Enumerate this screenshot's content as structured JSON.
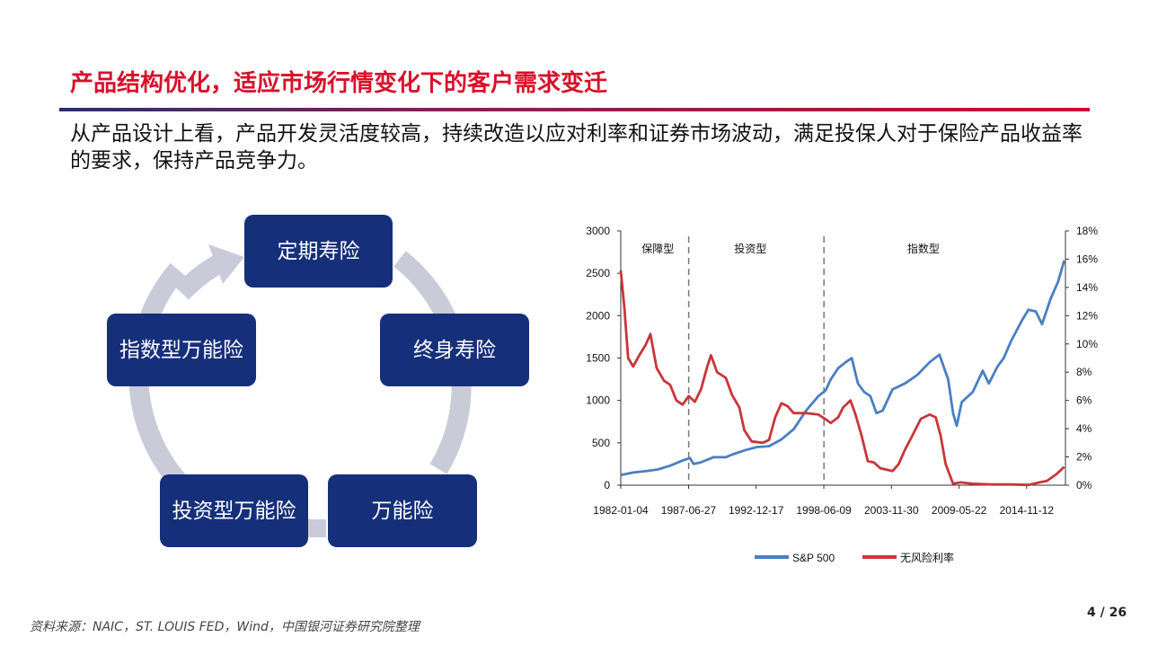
{
  "header": {
    "title": "产品结构优化，适应市场行情变化下的客户需求变迁"
  },
  "body": {
    "text": "从产品设计上看，产品开发灵活度较高，持续改造以应对利率和证券市场波动，满足投保人对于保险产品收益率的要求，保持产品竞争力。"
  },
  "cycle": {
    "items": [
      {
        "label": "定期寿险"
      },
      {
        "label": "终身寿险"
      },
      {
        "label": "万能险"
      },
      {
        "label": "投资型万能险"
      },
      {
        "label": "指数型万能险"
      }
    ],
    "colors": {
      "box": "#162f7a",
      "arrow": "#c9cbd9"
    }
  },
  "chart_data": {
    "type": "line",
    "x_ticks": [
      "1982-01-04",
      "1987-06-27",
      "1992-12-17",
      "1998-06-09",
      "2003-11-30",
      "2009-05-22",
      "2014-11-12"
    ],
    "y_left": {
      "ticks": [
        "0",
        "500",
        "1000",
        "1500",
        "2000",
        "2500",
        "3000"
      ],
      "range": [
        0,
        3000
      ]
    },
    "y_right": {
      "ticks": [
        "0%",
        "2%",
        "4%",
        "6%",
        "8%",
        "10%",
        "12%",
        "14%",
        "16%",
        "18%"
      ],
      "range": [
        0,
        18
      ]
    },
    "regions": [
      {
        "label": "保障型"
      },
      {
        "label": "投资型"
      },
      {
        "label": "指数型"
      }
    ],
    "region_dividers": [
      1987.5,
      1998.45
    ],
    "legend_position": "bottom",
    "series": [
      {
        "name": "S&P 500",
        "axis": "left",
        "color": "#4a7fc1",
        "points": [
          [
            1982.0,
            120
          ],
          [
            1983.0,
            150
          ],
          [
            1984.0,
            165
          ],
          [
            1985.0,
            185
          ],
          [
            1986.0,
            230
          ],
          [
            1987.0,
            290
          ],
          [
            1987.6,
            320
          ],
          [
            1987.9,
            250
          ],
          [
            1988.5,
            270
          ],
          [
            1989.5,
            330
          ],
          [
            1990.5,
            330
          ],
          [
            1991.0,
            360
          ],
          [
            1992.0,
            410
          ],
          [
            1993.0,
            450
          ],
          [
            1994.0,
            460
          ],
          [
            1995.0,
            540
          ],
          [
            1996.0,
            660
          ],
          [
            1997.0,
            880
          ],
          [
            1998.0,
            1050
          ],
          [
            1998.6,
            1120
          ],
          [
            1999.0,
            1250
          ],
          [
            1999.6,
            1380
          ],
          [
            2000.2,
            1450
          ],
          [
            2000.7,
            1500
          ],
          [
            2001.2,
            1200
          ],
          [
            2001.7,
            1100
          ],
          [
            2002.2,
            1050
          ],
          [
            2002.7,
            850
          ],
          [
            2003.2,
            880
          ],
          [
            2004.0,
            1130
          ],
          [
            2005.0,
            1200
          ],
          [
            2006.0,
            1300
          ],
          [
            2007.0,
            1450
          ],
          [
            2007.8,
            1540
          ],
          [
            2008.5,
            1250
          ],
          [
            2008.9,
            850
          ],
          [
            2009.2,
            700
          ],
          [
            2009.6,
            980
          ],
          [
            2010.5,
            1100
          ],
          [
            2011.3,
            1350
          ],
          [
            2011.8,
            1200
          ],
          [
            2012.5,
            1400
          ],
          [
            2013.0,
            1500
          ],
          [
            2013.6,
            1700
          ],
          [
            2014.5,
            1950
          ],
          [
            2015.0,
            2070
          ],
          [
            2015.6,
            2050
          ],
          [
            2016.1,
            1900
          ],
          [
            2016.8,
            2200
          ],
          [
            2017.4,
            2400
          ],
          [
            2017.9,
            2650
          ]
        ]
      },
      {
        "name": "无风险利率",
        "axis": "right",
        "color": "#c8363b",
        "points": [
          [
            1982.0,
            15.2
          ],
          [
            1982.3,
            12.5
          ],
          [
            1982.6,
            9.0
          ],
          [
            1983.0,
            8.4
          ],
          [
            1983.5,
            9.2
          ],
          [
            1984.0,
            9.9
          ],
          [
            1984.4,
            10.7
          ],
          [
            1984.9,
            8.3
          ],
          [
            1985.5,
            7.4
          ],
          [
            1986.0,
            7.1
          ],
          [
            1986.5,
            6.0
          ],
          [
            1987.0,
            5.7
          ],
          [
            1987.5,
            6.3
          ],
          [
            1988.0,
            5.9
          ],
          [
            1988.5,
            6.8
          ],
          [
            1989.0,
            8.4
          ],
          [
            1989.3,
            9.2
          ],
          [
            1989.8,
            8.0
          ],
          [
            1990.5,
            7.6
          ],
          [
            1991.0,
            6.4
          ],
          [
            1991.6,
            5.5
          ],
          [
            1992.0,
            3.9
          ],
          [
            1992.6,
            3.1
          ],
          [
            1993.5,
            3.0
          ],
          [
            1994.0,
            3.2
          ],
          [
            1994.5,
            4.8
          ],
          [
            1995.0,
            5.8
          ],
          [
            1995.5,
            5.6
          ],
          [
            1996.0,
            5.1
          ],
          [
            1997.0,
            5.1
          ],
          [
            1998.0,
            5.0
          ],
          [
            1998.7,
            4.6
          ],
          [
            1999.0,
            4.4
          ],
          [
            1999.6,
            4.8
          ],
          [
            2000.0,
            5.5
          ],
          [
            2000.6,
            6.0
          ],
          [
            2001.0,
            5.0
          ],
          [
            2001.5,
            3.5
          ],
          [
            2002.0,
            1.7
          ],
          [
            2002.5,
            1.6
          ],
          [
            2003.0,
            1.2
          ],
          [
            2004.0,
            1.0
          ],
          [
            2004.5,
            1.5
          ],
          [
            2005.0,
            2.5
          ],
          [
            2005.6,
            3.5
          ],
          [
            2006.3,
            4.7
          ],
          [
            2007.0,
            5.0
          ],
          [
            2007.5,
            4.8
          ],
          [
            2007.9,
            3.5
          ],
          [
            2008.3,
            1.5
          ],
          [
            2008.9,
            0.1
          ],
          [
            2009.5,
            0.2
          ],
          [
            2010.5,
            0.1
          ],
          [
            2012.0,
            0.05
          ],
          [
            2013.5,
            0.05
          ],
          [
            2015.0,
            0.02
          ],
          [
            2015.9,
            0.2
          ],
          [
            2016.5,
            0.3
          ],
          [
            2017.3,
            0.8
          ],
          [
            2017.9,
            1.3
          ]
        ]
      }
    ]
  },
  "footer": {
    "source": "资料来源：NAIC，ST. LOUIS FED，Wind，中国银河证券研究院整理",
    "page": "4 / 26"
  }
}
